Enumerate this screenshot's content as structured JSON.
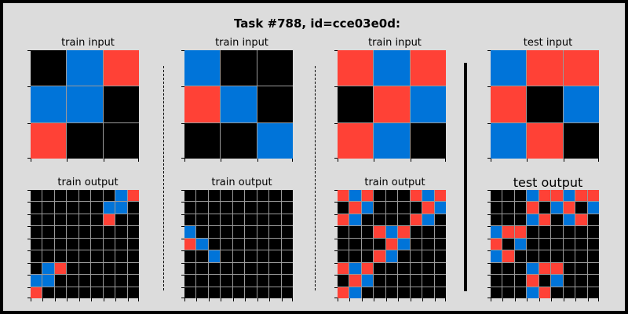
{
  "title": "Task #788, id=cce03e0d:",
  "colors": {
    "0": "#000000",
    "1": "#0074d9",
    "2": "#ff4136"
  },
  "panels": [
    {
      "input_label": "train input",
      "output_label": "train output",
      "input": [
        [
          0,
          1,
          2
        ],
        [
          1,
          1,
          0
        ],
        [
          2,
          0,
          0
        ]
      ],
      "output": [
        [
          0,
          0,
          0,
          0,
          0,
          0,
          0,
          1,
          2
        ],
        [
          0,
          0,
          0,
          0,
          0,
          0,
          1,
          1,
          0
        ],
        [
          0,
          0,
          0,
          0,
          0,
          0,
          2,
          0,
          0
        ],
        [
          0,
          0,
          0,
          0,
          0,
          0,
          0,
          0,
          0
        ],
        [
          0,
          0,
          0,
          0,
          0,
          0,
          0,
          0,
          0
        ],
        [
          0,
          0,
          0,
          0,
          0,
          0,
          0,
          0,
          0
        ],
        [
          0,
          1,
          2,
          0,
          0,
          0,
          0,
          0,
          0
        ],
        [
          1,
          1,
          0,
          0,
          0,
          0,
          0,
          0,
          0
        ],
        [
          2,
          0,
          0,
          0,
          0,
          0,
          0,
          0,
          0
        ]
      ]
    },
    {
      "input_label": "train input",
      "output_label": "train output",
      "input": [
        [
          1,
          0,
          0
        ],
        [
          2,
          1,
          0
        ],
        [
          0,
          0,
          1
        ]
      ],
      "output": [
        [
          0,
          0,
          0,
          0,
          0,
          0,
          0,
          0,
          0
        ],
        [
          0,
          0,
          0,
          0,
          0,
          0,
          0,
          0,
          0
        ],
        [
          0,
          0,
          0,
          0,
          0,
          0,
          0,
          0,
          0
        ],
        [
          1,
          0,
          0,
          0,
          0,
          0,
          0,
          0,
          0
        ],
        [
          2,
          1,
          0,
          0,
          0,
          0,
          0,
          0,
          0
        ],
        [
          0,
          0,
          1,
          0,
          0,
          0,
          0,
          0,
          0
        ],
        [
          0,
          0,
          0,
          0,
          0,
          0,
          0,
          0,
          0
        ],
        [
          0,
          0,
          0,
          0,
          0,
          0,
          0,
          0,
          0
        ],
        [
          0,
          0,
          0,
          0,
          0,
          0,
          0,
          0,
          0
        ]
      ]
    },
    {
      "input_label": "train input",
      "output_label": "train output",
      "input": [
        [
          2,
          1,
          2
        ],
        [
          0,
          2,
          1
        ],
        [
          2,
          1,
          0
        ]
      ],
      "output": [
        [
          2,
          1,
          2,
          0,
          0,
          0,
          2,
          1,
          2
        ],
        [
          0,
          2,
          1,
          0,
          0,
          0,
          0,
          2,
          1
        ],
        [
          2,
          1,
          0,
          0,
          0,
          0,
          2,
          1,
          0
        ],
        [
          0,
          0,
          0,
          2,
          1,
          2,
          0,
          0,
          0
        ],
        [
          0,
          0,
          0,
          0,
          2,
          1,
          0,
          0,
          0
        ],
        [
          0,
          0,
          0,
          2,
          1,
          0,
          0,
          0,
          0
        ],
        [
          2,
          1,
          2,
          0,
          0,
          0,
          0,
          0,
          0
        ],
        [
          0,
          2,
          1,
          0,
          0,
          0,
          0,
          0,
          0
        ],
        [
          2,
          1,
          0,
          0,
          0,
          0,
          0,
          0,
          0
        ]
      ]
    },
    {
      "input_label": "test input",
      "output_label": "test output",
      "input": [
        [
          1,
          2,
          2
        ],
        [
          2,
          0,
          1
        ],
        [
          1,
          2,
          0
        ]
      ],
      "output": [
        [
          0,
          0,
          0,
          1,
          2,
          2,
          1,
          2,
          2
        ],
        [
          0,
          0,
          0,
          2,
          0,
          1,
          2,
          0,
          1
        ],
        [
          0,
          0,
          0,
          1,
          2,
          0,
          1,
          2,
          0
        ],
        [
          1,
          2,
          2,
          0,
          0,
          0,
          0,
          0,
          0
        ],
        [
          2,
          0,
          1,
          0,
          0,
          0,
          0,
          0,
          0
        ],
        [
          1,
          2,
          0,
          0,
          0,
          0,
          0,
          0,
          0
        ],
        [
          0,
          0,
          0,
          1,
          2,
          2,
          0,
          0,
          0
        ],
        [
          0,
          0,
          0,
          2,
          0,
          1,
          0,
          0,
          0
        ],
        [
          0,
          0,
          0,
          1,
          2,
          0,
          0,
          0,
          0
        ]
      ]
    }
  ]
}
